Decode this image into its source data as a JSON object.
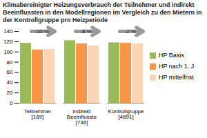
{
  "chart_data": {
    "type": "bar",
    "title": "Klimabereinigter Heizungsverbrauch der Teilnehmer und indirekt Beeinflussten in den Modellregionen im Vergleich zu den Mietern in der Kontrollgruppe pro Heizperiode",
    "categories": [
      "Teilnehmer [189]",
      "indirekt Beeinflusste [736]",
      "Kontrollgruppe [4891]"
    ],
    "series": [
      {
        "name": "HP Basis",
        "color": "#9bbb59",
        "values": [
          117,
          122,
          118
        ]
      },
      {
        "name": "HP nach 1. J",
        "color": "#f79646",
        "values": [
          104,
          116,
          117
        ]
      },
      {
        "name": "HP mittelfrist",
        "color": "#fcd5b5",
        "values": [
          105,
          112,
          116
        ]
      }
    ],
    "annotations": [
      "-10 %",
      "-8 %",
      "-2 %"
    ],
    "ylim": [
      0,
      140
    ],
    "yticks": [
      0,
      20,
      40,
      60,
      80,
      100,
      120,
      140
    ],
    "grid": false,
    "legend": "right"
  }
}
